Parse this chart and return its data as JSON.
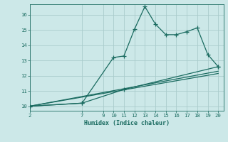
{
  "bg_color": "#cce8e8",
  "grid_color": "#aacccc",
  "line_color": "#1a6b60",
  "xlabel": "Humidex (Indice chaleur)",
  "xlim": [
    2,
    20.5
  ],
  "ylim": [
    9.7,
    16.7
  ],
  "xticks": [
    2,
    7,
    9,
    10,
    11,
    12,
    13,
    14,
    15,
    16,
    17,
    18,
    19,
    20
  ],
  "yticks": [
    10,
    11,
    12,
    13,
    14,
    15,
    16
  ],
  "line1_x": [
    2,
    7,
    10,
    11,
    12,
    13,
    14,
    15,
    16,
    17,
    18,
    19,
    20
  ],
  "line1_y": [
    10.0,
    10.2,
    13.2,
    13.3,
    15.05,
    16.55,
    15.4,
    14.7,
    14.7,
    14.9,
    15.15,
    13.4,
    12.6
  ],
  "line2_x": [
    2,
    7,
    11,
    20
  ],
  "line2_y": [
    10.0,
    10.2,
    11.1,
    12.6
  ],
  "line3_x": [
    2,
    20
  ],
  "line3_y": [
    10.0,
    12.3
  ],
  "line4_x": [
    2,
    20
  ],
  "line4_y": [
    10.0,
    12.15
  ]
}
